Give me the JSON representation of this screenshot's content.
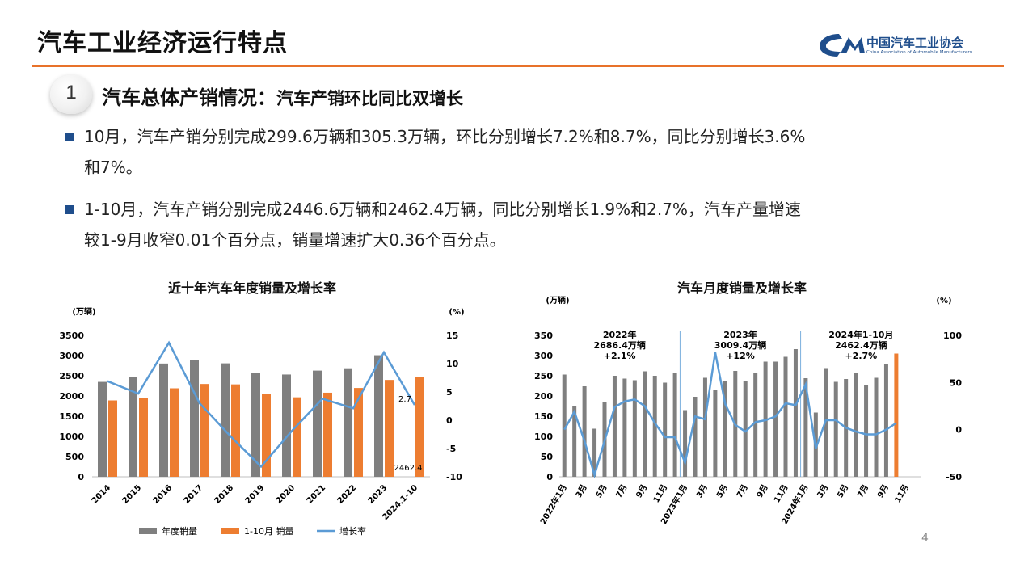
{
  "header": {
    "title": "汽车工业经济运行特点"
  },
  "logo": {
    "name": "中国汽车工业协会",
    "sub": "China Association of Automobile Manufacturers",
    "mark": "CM"
  },
  "section": {
    "number": "1",
    "title": "汽车总体产销情况：",
    "subtitle": "汽车产销环比同比双增长"
  },
  "bullets": [
    {
      "line1": "10月，汽车产销分别完成299.6万辆和305.3万辆，环比分别增长7.2%和8.7%，同比分别增长3.6%",
      "line2": "和7%。"
    },
    {
      "line1": "1-10月，汽车产销分别完成2446.6万辆和2462.4万辆，同比分别增长1.9%和2.7%，汽车产量增速",
      "line2": "较1-9月收窄0.01个百分点，销量增速扩大0.36个百分点。"
    }
  ],
  "page_number": "4",
  "colors": {
    "gray": "#7f7f7f",
    "orange": "#ed7d31",
    "blue": "#5b9bd5",
    "accent_rule": "#e8722a",
    "brand": "#1f4e8c"
  },
  "chart_data": [
    {
      "type": "bar",
      "title": "近十年汽车年度销量及增长率",
      "ylabel": "(万辆)",
      "y2label": "(%)",
      "ylim": [
        0,
        3500
      ],
      "y2lim": [
        -10,
        15
      ],
      "yticks": [
        "0",
        "500",
        "1000",
        "1500",
        "2000",
        "2500",
        "3000",
        "3500"
      ],
      "y2ticks": [
        "-10",
        "-5",
        "0",
        "5",
        "10",
        "15"
      ],
      "categories": [
        "2014",
        "2015",
        "2016",
        "2017",
        "2018",
        "2019",
        "2020",
        "2021",
        "2022",
        "2023",
        "2024.1-10"
      ],
      "series": [
        {
          "name": "年度销量",
          "kind": "bar",
          "values": [
            2349,
            2460,
            2803,
            2888,
            2808,
            2577,
            2531,
            2628,
            2686,
            3009,
            null
          ]
        },
        {
          "name": "1-10月 销量",
          "kind": "bar",
          "values": [
            1890,
            1940,
            2190,
            2297,
            2287,
            2055,
            1967,
            2081,
            2198,
            2397,
            2462.4
          ]
        },
        {
          "name": "增长率",
          "kind": "line",
          "axis": "right",
          "values": [
            6.9,
            4.7,
            13.7,
            3.0,
            -2.8,
            -8.2,
            -1.9,
            3.8,
            2.1,
            12.0,
            2.7
          ]
        }
      ],
      "annotations": [
        "2.7",
        "2462.4"
      ],
      "legend_position": "bottom"
    },
    {
      "type": "bar",
      "title": "汽车月度销量及增长率",
      "ylabel": "(万辆)",
      "y2label": "(%)",
      "ylim": [
        0,
        350
      ],
      "y2lim": [
        -50,
        100
      ],
      "yticks": [
        "0",
        "50",
        "100",
        "150",
        "200",
        "250",
        "300",
        "350"
      ],
      "y2ticks": [
        "-50",
        "0",
        "50",
        "100"
      ],
      "xticks": [
        "2022年1月",
        "3月",
        "5月",
        "7月",
        "9月",
        "11月",
        "2023年1月",
        "3月",
        "5月",
        "7月",
        "9月",
        "11月",
        "2024年1月",
        "3月",
        "5月",
        "7月",
        "9月",
        "11月"
      ],
      "sales": [
        253,
        174,
        224,
        119,
        186,
        250,
        243,
        239,
        261,
        250,
        233,
        256,
        165,
        198,
        245,
        215,
        238,
        262,
        238,
        258,
        285,
        285,
        297,
        316,
        244,
        159,
        269,
        235,
        242,
        256,
        227,
        245,
        280,
        305
      ],
      "growth": [
        0,
        19,
        -12,
        -48,
        -12,
        24,
        30,
        32,
        25,
        7,
        -8,
        -8,
        -35,
        14,
        11,
        82,
        27,
        5,
        -2,
        8,
        10,
        14,
        28,
        26,
        48,
        -20,
        10,
        10,
        2,
        -2,
        -5,
        -5,
        0,
        7
      ],
      "annotations": [
        {
          "text": "2022年\n2686.4万辆\n+2.1%"
        },
        {
          "text": "2023年\n3009.4万辆\n+12%"
        },
        {
          "text": "2024年1-10月\n2462.4万辆\n+2.7%"
        }
      ]
    }
  ]
}
